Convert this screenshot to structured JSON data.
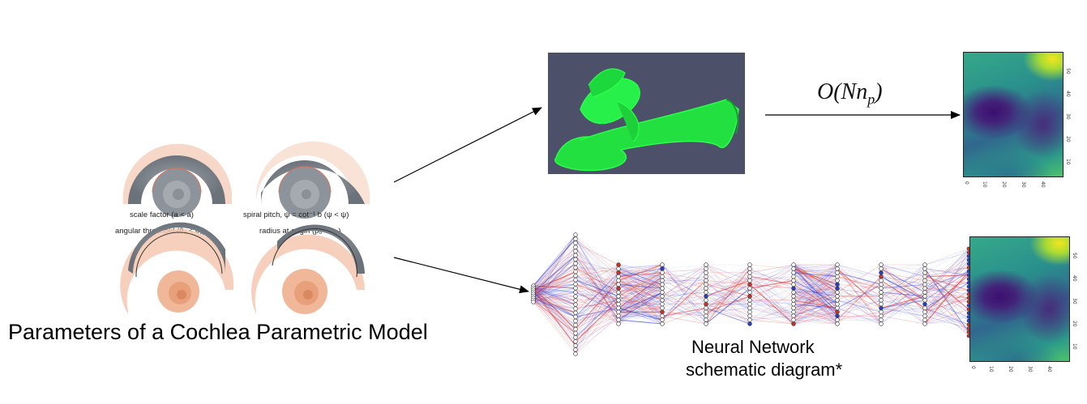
{
  "cochlea_panel": {
    "labels": {
      "scale_factor": "scale factor (a < a)",
      "spiral_pitch": "spiral pitch, ψ = cot⁻¹ b (ψ < ψ)",
      "angular_threshold": "angular threshold (θ₂ < θ₂)",
      "radius_origin": "radius at origin (p₀ < p₀)"
    },
    "caption": "Parameters of a Cochlea Parametric Model"
  },
  "complexity_label": "O(Nn",
  "complexity_sub": "p",
  "neural_net": {
    "caption_line1": "Neural Network",
    "caption_line2": "schematic diagram*"
  },
  "heatmap": {
    "y_ticks": [
      "50",
      "40",
      "30",
      "20",
      "10"
    ],
    "x_ticks": [
      "0",
      "10",
      "20",
      "30",
      "40"
    ]
  },
  "colors": {
    "mesh_bg": "#4c5068",
    "mesh_green": "#2bff4a",
    "arrow": "#000000"
  }
}
